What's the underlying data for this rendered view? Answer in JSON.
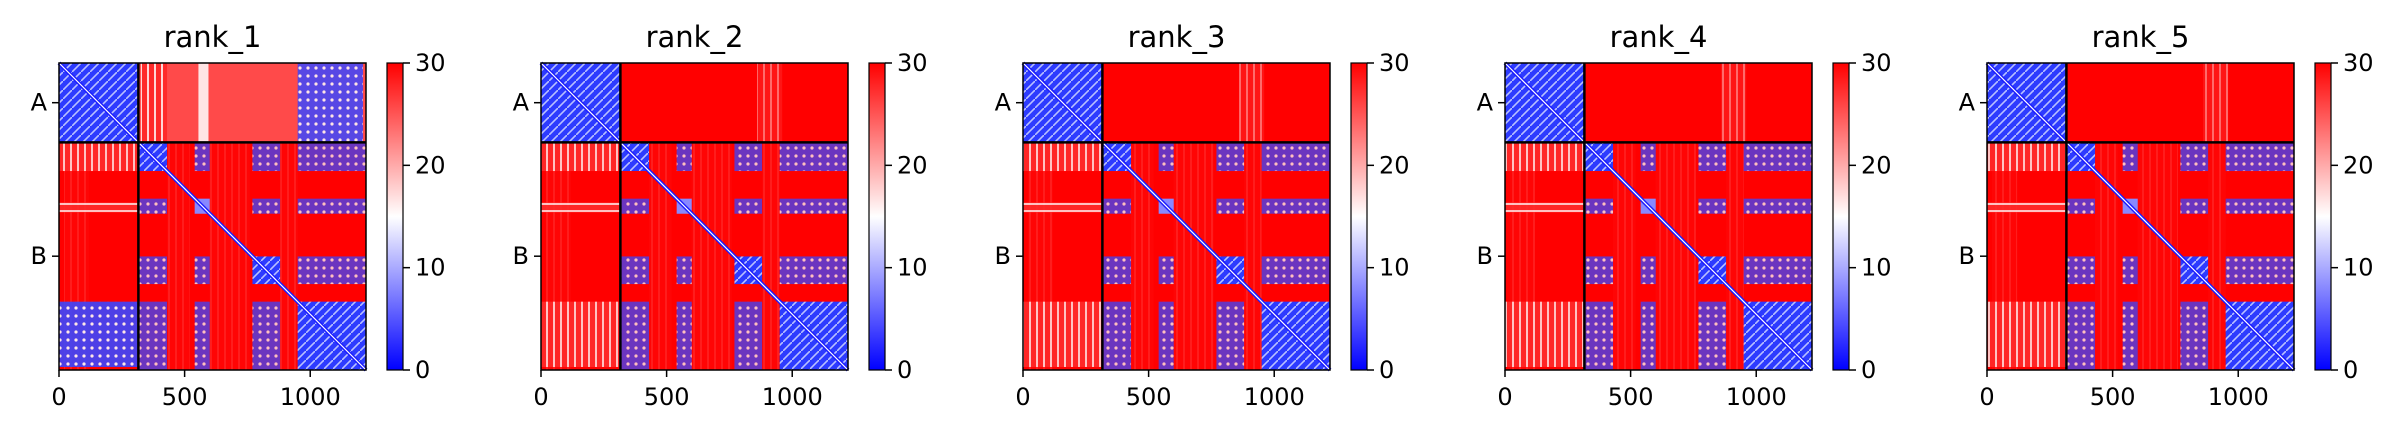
{
  "chart_data": {
    "type": "heatmap",
    "colorbar": {
      "min": 0,
      "max": 30,
      "ticks": [
        0,
        10,
        20,
        30
      ],
      "colors": [
        "#0000ff",
        "#ffffff",
        "#ff0000"
      ]
    },
    "x_ticks": [
      0,
      500,
      1000
    ],
    "x_range": [
      0,
      1222
    ],
    "chains": [
      {
        "name": "A",
        "start": 0,
        "end": 316
      },
      {
        "name": "B",
        "start": 316,
        "end": 1222
      }
    ],
    "panels": [
      {
        "title": "rank_1",
        "inter_AB": "mixed"
      },
      {
        "title": "rank_2",
        "inter_AB": "high"
      },
      {
        "title": "rank_3",
        "inter_AB": "high"
      },
      {
        "title": "rank_4",
        "inter_AB": "high"
      },
      {
        "title": "rank_5",
        "inter_AB": "high"
      }
    ],
    "b_domains": [
      {
        "start": 316,
        "end": 430,
        "value": 4
      },
      {
        "start": 540,
        "end": 600,
        "value": 8
      },
      {
        "start": 770,
        "end": 880,
        "value": 3
      },
      {
        "start": 950,
        "end": 1222,
        "value": 4
      }
    ]
  }
}
